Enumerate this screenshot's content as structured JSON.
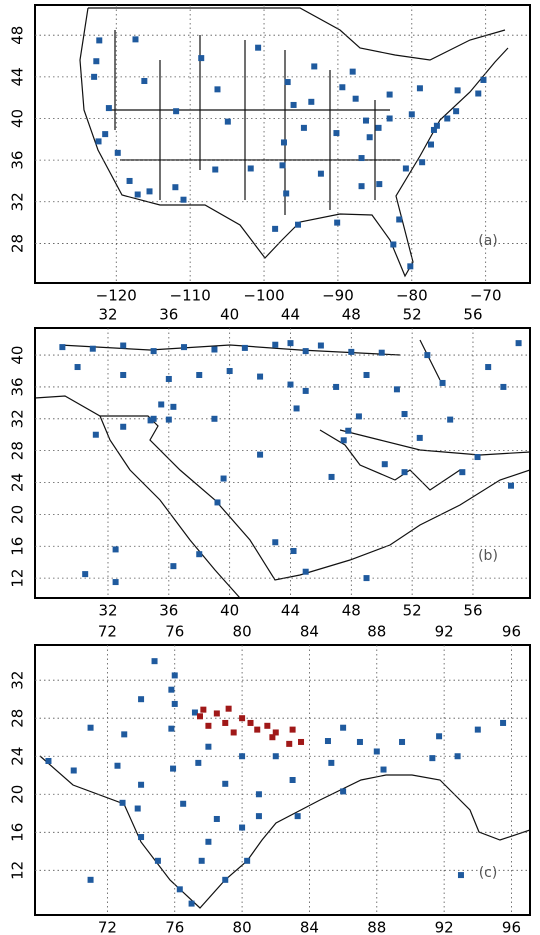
{
  "chart_data": [
    {
      "type": "scatter",
      "annotation": "(a)",
      "xlim": [
        -131,
        -64
      ],
      "ylim": [
        24.2,
        50.9
      ],
      "xticks": [
        {
          "value": -120,
          "label": "−120"
        },
        {
          "value": -110,
          "label": "−110"
        },
        {
          "value": -100,
          "label": "−100"
        },
        {
          "value": -90,
          "label": "−90"
        },
        {
          "value": -80,
          "label": "−80"
        },
        {
          "value": -70,
          "label": "−70"
        }
      ],
      "yticks": [
        28,
        32,
        36,
        40,
        44,
        48
      ],
      "grid": true,
      "series": [
        {
          "color": "#1f5a9e",
          "x": [
            -122.3,
            -117.4,
            -122.7,
            -123,
            -121,
            -122.4,
            -121.5,
            -119.8,
            -118.2,
            -117.1,
            -115.5,
            -112,
            -110.9,
            -106.6,
            -104.9,
            -111.9,
            -116.2,
            -108.5,
            -106.3,
            -100.8,
            -96.8,
            -96,
            -97.3,
            -97.5,
            -97,
            -95.4,
            -98.5,
            -101.8,
            -93.2,
            -93.6,
            -90.2,
            -94.6,
            -92.3,
            -90.1,
            -87.6,
            -86.2,
            -83,
            -83,
            -85.7,
            -86.8,
            -86.8,
            -84.4,
            -81.7,
            -80.2,
            -82.5,
            -80.8,
            -78.6,
            -77.4,
            -77,
            -75.2,
            -74,
            -71,
            -73.8,
            -76.6,
            -80,
            -78.9,
            -70.3,
            -88,
            -89.4,
            -84.5
          ],
          "y": [
            47.5,
            47.6,
            45.5,
            44,
            41,
            37.8,
            38.5,
            36.7,
            34,
            32.7,
            33,
            33.4,
            32.2,
            35.1,
            39.7,
            40.7,
            43.6,
            45.8,
            42.8,
            46.8,
            43.5,
            41.3,
            37.7,
            35.5,
            32.8,
            29.8,
            29.4,
            35.2,
            45,
            41.6,
            38.6,
            39.1,
            34.7,
            30,
            41.9,
            39.8,
            40,
            42.3,
            38.2,
            36.2,
            33.5,
            33.7,
            30.3,
            25.8,
            27.9,
            35.2,
            35.8,
            37.5,
            38.9,
            40,
            40.7,
            42.4,
            42.7,
            39.3,
            40.4,
            42.9,
            43.7,
            44.5,
            43,
            39.1
          ]
        }
      ]
    },
    {
      "type": "scatter",
      "annotation": "(b)",
      "xlim": [
        27.2,
        59.75
      ],
      "ylim": [
        9.5,
        43.4
      ],
      "xticks": [
        32,
        36,
        40,
        44,
        48,
        52,
        56
      ],
      "yticks": [
        12,
        16,
        20,
        24,
        28,
        32,
        36,
        40
      ],
      "grid": true,
      "series": [
        {
          "color": "#1f5a9e",
          "x": [
            29,
            31,
            33,
            35,
            37,
            39,
            41,
            43,
            44,
            45,
            46,
            48,
            50,
            53,
            57,
            59,
            30,
            33,
            36,
            38,
            40,
            42,
            44,
            45,
            47,
            49,
            51,
            54,
            58,
            35.5,
            36.3,
            35,
            33,
            31.2,
            34.8,
            36,
            39,
            44.4,
            47.8,
            48.5,
            51.5,
            52.5,
            54.5,
            56.3,
            55.3,
            51.5,
            50.2,
            46.7,
            42,
            39.6,
            39.2,
            43,
            44.2,
            45,
            32.5,
            38,
            36.3,
            30.5,
            58.5,
            47.5,
            32.5,
            49
          ],
          "y": [
            41,
            40.8,
            41.2,
            40.5,
            41,
            40.7,
            40.9,
            41.3,
            41.5,
            40.5,
            41.2,
            40.4,
            40.3,
            40,
            38.5,
            41.5,
            38.5,
            37.5,
            37,
            37.5,
            38,
            37.3,
            36.3,
            35.5,
            36,
            37.5,
            35.7,
            36.5,
            36,
            33.8,
            33.5,
            32,
            31,
            30,
            31.8,
            31.9,
            32,
            33.3,
            30.5,
            32.3,
            32.6,
            29.6,
            31.9,
            27.2,
            25.3,
            25.3,
            26.3,
            24.7,
            27.5,
            24.5,
            21.5,
            16.5,
            15.4,
            12.8,
            15.6,
            15,
            13.5,
            12.5,
            23.6,
            29.3,
            11.5,
            12
          ]
        }
      ]
    },
    {
      "type": "scatter",
      "annotation": "(c)",
      "xlim": [
        67.7,
        97.1
      ],
      "ylim": [
        7.3,
        35.7
      ],
      "xticks": [
        72,
        76,
        80,
        84,
        88,
        92,
        96
      ],
      "yticks": [
        12,
        16,
        20,
        24,
        28,
        32
      ],
      "grid": true,
      "series": [
        {
          "color": "#1f5a9e",
          "x": [
            74.8,
            76,
            75.8,
            77.2,
            73,
            75.8,
            72.6,
            70,
            68.5,
            72.9,
            73.8,
            74,
            75,
            76.3,
            77,
            77.6,
            78.5,
            80.3,
            79,
            80,
            81,
            79,
            77.4,
            75.9,
            83,
            85.3,
            86,
            88.4,
            88,
            89.5,
            91.7,
            94,
            95.5,
            92.8,
            91.3,
            87,
            85.1,
            86,
            81,
            83.3,
            78,
            76.5,
            74,
            82,
            80,
            78,
            76,
            74,
            71,
            71,
            93
          ],
          "y": [
            34,
            32.5,
            31,
            28.6,
            26.3,
            26.9,
            23,
            22.5,
            23.5,
            19.1,
            18.5,
            15.5,
            13,
            10,
            8.5,
            13,
            17.4,
            13,
            11,
            16.5,
            20,
            21.1,
            23.3,
            22.7,
            21.5,
            23.3,
            20.3,
            22.6,
            24.5,
            25.5,
            26.1,
            26.8,
            27.5,
            24,
            23.8,
            25.5,
            25.6,
            27,
            17.7,
            17.7,
            15,
            19,
            21,
            24,
            24,
            25,
            29.5,
            30,
            27,
            11,
            11.5
          ]
        },
        {
          "color": "#a01818",
          "x": [
            77.7,
            78.5,
            79,
            80,
            80.9,
            81.5,
            82,
            83,
            83.5,
            82.8,
            79.5,
            78,
            77.5,
            79.2,
            80.5,
            81.8
          ],
          "y": [
            28.9,
            28.5,
            27.5,
            28,
            26.8,
            27.2,
            26.5,
            26.8,
            25.5,
            25.3,
            26.5,
            27.2,
            28.2,
            29,
            27.5,
            26
          ]
        }
      ]
    }
  ]
}
